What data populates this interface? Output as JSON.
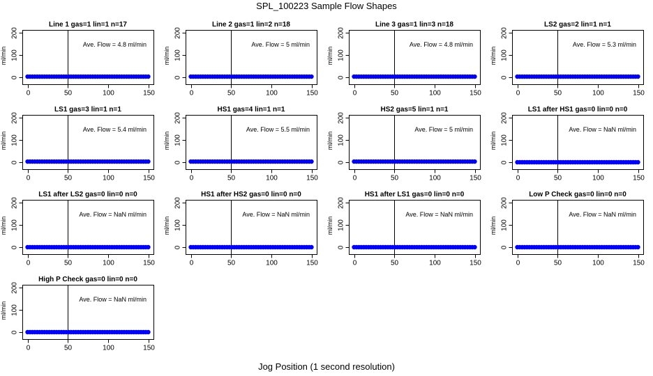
{
  "figure": {
    "title": "SPL_100223  Sample Flow Shapes",
    "xlabel": "Jog Position (1 second resolution)"
  },
  "colors": {
    "series": "#0000ff",
    "axis": "#000000",
    "background": "#ffffff"
  },
  "chart_data": [
    {
      "type": "scatter",
      "title": "Line 1 gas=1 lin=1 n=17",
      "annotation": "Ave. Flow =  4.8  ml/min",
      "ylabel": "ml/min",
      "xlim": [
        0,
        150
      ],
      "ylim": [
        0,
        200
      ],
      "xticks": [
        "0",
        "50",
        "100",
        "150"
      ],
      "yticks": [
        "0",
        "100",
        "200"
      ],
      "vline_x": 50,
      "x": [
        0,
        150
      ],
      "y": [
        3,
        3
      ]
    },
    {
      "type": "scatter",
      "title": "Line 2 gas=1 lin=2 n=18",
      "annotation": "Ave. Flow =  5  ml/min",
      "ylabel": "ml/min",
      "xlim": [
        0,
        150
      ],
      "ylim": [
        0,
        200
      ],
      "xticks": [
        "0",
        "50",
        "100",
        "150"
      ],
      "yticks": [
        "0",
        "100",
        "200"
      ],
      "vline_x": 50,
      "x": [
        0,
        150
      ],
      "y": [
        3,
        3
      ]
    },
    {
      "type": "scatter",
      "title": "Line 3 gas=1 lin=3 n=18",
      "annotation": "Ave. Flow =  4.8  ml/min",
      "ylabel": "ml/min",
      "xlim": [
        0,
        150
      ],
      "ylim": [
        0,
        200
      ],
      "xticks": [
        "0",
        "50",
        "100",
        "150"
      ],
      "yticks": [
        "0",
        "100",
        "200"
      ],
      "vline_x": 50,
      "x": [
        0,
        150
      ],
      "y": [
        3,
        3
      ]
    },
    {
      "type": "scatter",
      "title": "LS2 gas=2 lin=1 n=1",
      "annotation": "Ave. Flow =  5.3  ml/min",
      "ylabel": "ml/min",
      "xlim": [
        0,
        150
      ],
      "ylim": [
        0,
        200
      ],
      "xticks": [
        "0",
        "50",
        "100",
        "150"
      ],
      "yticks": [
        "0",
        "100",
        "200"
      ],
      "vline_x": 50,
      "x": [
        0,
        150
      ],
      "y": [
        3,
        3
      ]
    },
    {
      "type": "scatter",
      "title": "LS1 gas=3 lin=1 n=1",
      "annotation": "Ave. Flow =  5.4  ml/min",
      "ylabel": "ml/min",
      "xlim": [
        0,
        150
      ],
      "ylim": [
        0,
        200
      ],
      "xticks": [
        "0",
        "50",
        "100",
        "150"
      ],
      "yticks": [
        "0",
        "100",
        "200"
      ],
      "vline_x": 50,
      "x": [
        0,
        150
      ],
      "y": [
        3,
        3
      ]
    },
    {
      "type": "scatter",
      "title": "HS1 gas=4 lin=1 n=1",
      "annotation": "Ave. Flow =  5.5  ml/min",
      "ylabel": "ml/min",
      "xlim": [
        0,
        150
      ],
      "ylim": [
        0,
        200
      ],
      "xticks": [
        "0",
        "50",
        "100",
        "150"
      ],
      "yticks": [
        "0",
        "100",
        "200"
      ],
      "vline_x": 50,
      "x": [
        0,
        150
      ],
      "y": [
        3,
        3
      ]
    },
    {
      "type": "scatter",
      "title": "HS2 gas=5 lin=1 n=1",
      "annotation": "Ave. Flow =  5  ml/min",
      "ylabel": "ml/min",
      "xlim": [
        0,
        150
      ],
      "ylim": [
        0,
        200
      ],
      "xticks": [
        "0",
        "50",
        "100",
        "150"
      ],
      "yticks": [
        "0",
        "100",
        "200"
      ],
      "vline_x": 50,
      "x": [
        0,
        150
      ],
      "y": [
        3,
        3
      ]
    },
    {
      "type": "scatter",
      "title": "LS1 after HS1 gas=0 lin=0 n=0",
      "annotation": "Ave. Flow =  NaN  ml/min",
      "ylabel": "ml/min",
      "xlim": [
        0,
        150
      ],
      "ylim": [
        0,
        200
      ],
      "xticks": [
        "0",
        "50",
        "100",
        "150"
      ],
      "yticks": [
        "0",
        "100",
        "200"
      ],
      "vline_x": 50,
      "x": [
        0,
        150
      ],
      "y": [
        0,
        0
      ]
    },
    {
      "type": "scatter",
      "title": "LS1 after LS2 gas=0 lin=0 n=0",
      "annotation": "Ave. Flow =  NaN  ml/min",
      "ylabel": "ml/min",
      "xlim": [
        0,
        150
      ],
      "ylim": [
        0,
        200
      ],
      "xticks": [
        "0",
        "50",
        "100",
        "150"
      ],
      "yticks": [
        "0",
        "100",
        "200"
      ],
      "vline_x": 50,
      "x": [
        0,
        150
      ],
      "y": [
        0,
        0
      ]
    },
    {
      "type": "scatter",
      "title": "HS1 after HS2 gas=0 lin=0 n=0",
      "annotation": "Ave. Flow =  NaN  ml/min",
      "ylabel": "ml/min",
      "xlim": [
        0,
        150
      ],
      "ylim": [
        0,
        200
      ],
      "xticks": [
        "0",
        "50",
        "100",
        "150"
      ],
      "yticks": [
        "0",
        "100",
        "200"
      ],
      "vline_x": 50,
      "x": [
        0,
        150
      ],
      "y": [
        0,
        0
      ]
    },
    {
      "type": "scatter",
      "title": "HS1 after LS1 gas=0 lin=0 n=0",
      "annotation": "Ave. Flow =  NaN  ml/min",
      "ylabel": "ml/min",
      "xlim": [
        0,
        150
      ],
      "ylim": [
        0,
        200
      ],
      "xticks": [
        "0",
        "50",
        "100",
        "150"
      ],
      "yticks": [
        "0",
        "100",
        "200"
      ],
      "vline_x": 50,
      "x": [
        0,
        150
      ],
      "y": [
        0,
        0
      ]
    },
    {
      "type": "scatter",
      "title": "Low P Check gas=0 lin=0 n=0",
      "annotation": "Ave. Flow =  NaN  ml/min",
      "ylabel": "ml/min",
      "xlim": [
        0,
        150
      ],
      "ylim": [
        0,
        200
      ],
      "xticks": [
        "0",
        "50",
        "100",
        "150"
      ],
      "yticks": [
        "0",
        "100",
        "200"
      ],
      "vline_x": 50,
      "x": [
        0,
        150
      ],
      "y": [
        0,
        0
      ]
    },
    {
      "type": "scatter",
      "title": "High P Check gas=0 lin=0 n=0",
      "annotation": "Ave. Flow =  NaN  ml/min",
      "ylabel": "ml/min",
      "xlim": [
        0,
        150
      ],
      "ylim": [
        0,
        200
      ],
      "xticks": [
        "0",
        "50",
        "100",
        "150"
      ],
      "yticks": [
        "0",
        "100",
        "200"
      ],
      "vline_x": 50,
      "x": [
        0,
        150
      ],
      "y": [
        0,
        0
      ]
    }
  ]
}
